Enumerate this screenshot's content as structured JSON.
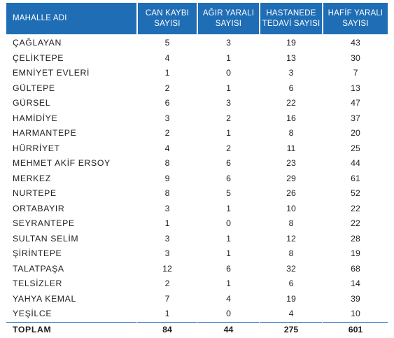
{
  "table": {
    "headers": [
      {
        "line1": "MAHALLE ADI",
        "line2": ""
      },
      {
        "line1": "CAN KAYBI",
        "line2": "SAYISI"
      },
      {
        "line1": "AĞIR YARALI",
        "line2": "SAYISI"
      },
      {
        "line1": "HASTANEDE",
        "line2": "TEDAVİ SAYISI"
      },
      {
        "line1": "HAFİF YARALI",
        "line2": "SAYISI"
      }
    ],
    "rows": [
      {
        "name": "ÇAĞLAYAN",
        "can_kaybi": "5",
        "agir_yarali": "3",
        "hastanede_tedavi": "19",
        "hafif_yarali": "43"
      },
      {
        "name": "ÇELİKTEPE",
        "can_kaybi": "4",
        "agir_yarali": "1",
        "hastanede_tedavi": "13",
        "hafif_yarali": "30"
      },
      {
        "name": "EMNİYET EVLERİ",
        "can_kaybi": "1",
        "agir_yarali": "0",
        "hastanede_tedavi": "3",
        "hafif_yarali": "7"
      },
      {
        "name": "GÜLTEPE",
        "can_kaybi": "2",
        "agir_yarali": "1",
        "hastanede_tedavi": "6",
        "hafif_yarali": "13"
      },
      {
        "name": "GÜRSEL",
        "can_kaybi": "6",
        "agir_yarali": "3",
        "hastanede_tedavi": "22",
        "hafif_yarali": "47"
      },
      {
        "name": "HAMİDİYE",
        "can_kaybi": "3",
        "agir_yarali": "2",
        "hastanede_tedavi": "16",
        "hafif_yarali": "37"
      },
      {
        "name": "HARMANTEPE",
        "can_kaybi": "2",
        "agir_yarali": "1",
        "hastanede_tedavi": "8",
        "hafif_yarali": "20"
      },
      {
        "name": "HÜRRİYET",
        "can_kaybi": "4",
        "agir_yarali": "2",
        "hastanede_tedavi": "11",
        "hafif_yarali": "25"
      },
      {
        "name": "MEHMET AKİF ERSOY",
        "can_kaybi": "8",
        "agir_yarali": "6",
        "hastanede_tedavi": "23",
        "hafif_yarali": "44"
      },
      {
        "name": "MERKEZ",
        "can_kaybi": "9",
        "agir_yarali": "6",
        "hastanede_tedavi": "29",
        "hafif_yarali": "61"
      },
      {
        "name": "NURTEPE",
        "can_kaybi": "8",
        "agir_yarali": "5",
        "hastanede_tedavi": "26",
        "hafif_yarali": "52"
      },
      {
        "name": "ORTABAYIR",
        "can_kaybi": "3",
        "agir_yarali": "1",
        "hastanede_tedavi": "10",
        "hafif_yarali": "22"
      },
      {
        "name": "SEYRANTEPE",
        "can_kaybi": "1",
        "agir_yarali": "0",
        "hastanede_tedavi": "8",
        "hafif_yarali": "22"
      },
      {
        "name": "SULTAN SELİM",
        "can_kaybi": "3",
        "agir_yarali": "1",
        "hastanede_tedavi": "12",
        "hafif_yarali": "28"
      },
      {
        "name": "ŞİRİNTEPE",
        "can_kaybi": "3",
        "agir_yarali": "1",
        "hastanede_tedavi": "8",
        "hafif_yarali": "19"
      },
      {
        "name": "TALATPAŞA",
        "can_kaybi": "12",
        "agir_yarali": "6",
        "hastanede_tedavi": "32",
        "hafif_yarali": "68"
      },
      {
        "name": "TELSİZLER",
        "can_kaybi": "2",
        "agir_yarali": "1",
        "hastanede_tedavi": "6",
        "hafif_yarali": "14"
      },
      {
        "name": "YAHYA KEMAL",
        "can_kaybi": "7",
        "agir_yarali": "4",
        "hastanede_tedavi": "19",
        "hafif_yarali": "39"
      },
      {
        "name": "YEŞİLCE",
        "can_kaybi": "1",
        "agir_yarali": "0",
        "hastanede_tedavi": "4",
        "hafif_yarali": "10"
      }
    ],
    "total": {
      "name": "TOPLAM",
      "can_kaybi": "84",
      "agir_yarali": "44",
      "hastanede_tedavi": "275",
      "hafif_yarali": "601"
    }
  },
  "colors": {
    "header_background": "#1f6eb5",
    "header_text": "#ffffff",
    "body_text": "#1e1e1e"
  }
}
